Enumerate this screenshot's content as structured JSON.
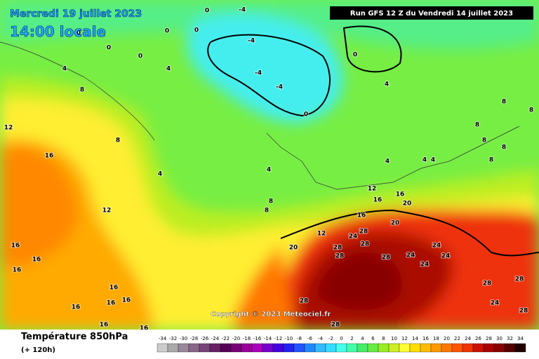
{
  "header": {
    "date": "Mercredi 19 juillet 2023",
    "time": "14:00 locale",
    "run": "Run GFS 12 Z du Vendredi 14 juillet 2023"
  },
  "copyright": "Copyright © 2023 Meteociel.fr",
  "legend": {
    "title": "Température 850hPa",
    "lead": "(+ 120h)",
    "scale": [
      -34,
      -32,
      -30,
      -28,
      -26,
      -24,
      -22,
      -20,
      -18,
      -16,
      -14,
      -12,
      -10,
      -8,
      -6,
      -4,
      -2,
      0,
      2,
      4,
      6,
      8,
      10,
      12,
      14,
      16,
      18,
      20,
      22,
      24,
      26,
      28,
      30,
      32,
      34
    ]
  },
  "map": {
    "contour_labels": [
      -4,
      -4,
      -4,
      -4,
      0,
      0,
      0,
      0,
      0,
      0,
      0,
      0,
      4,
      4,
      4,
      8,
      12,
      8,
      4,
      4,
      8,
      8,
      12,
      16,
      16,
      16,
      16,
      16,
      16,
      16,
      16,
      16,
      16,
      12,
      16,
      16,
      20,
      16,
      20,
      28,
      24,
      28,
      28,
      20,
      28,
      28,
      24,
      24,
      24,
      24,
      28,
      28,
      24,
      28,
      28,
      28,
      12,
      8,
      8,
      8,
      8,
      8,
      8,
      4,
      4,
      4
    ]
  }
}
